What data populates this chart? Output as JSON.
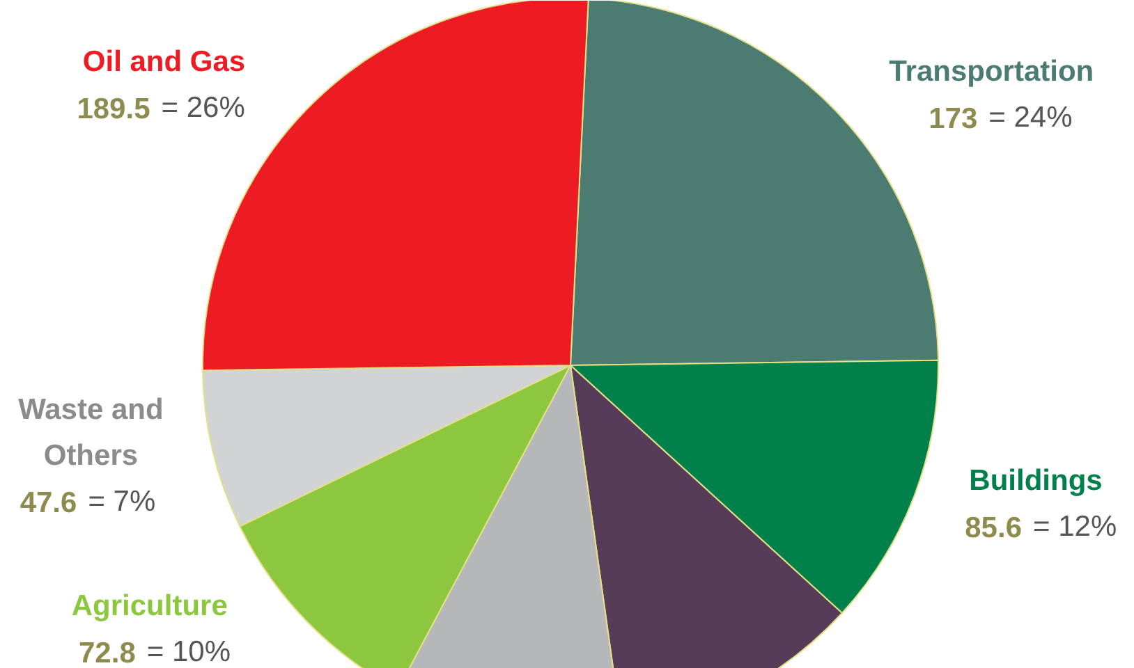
{
  "chart_data": {
    "type": "pie",
    "categories": [
      "Transportation",
      "Buildings",
      null,
      null,
      "Agriculture",
      "Waste and Others",
      "Oil and Gas"
    ],
    "values": [
      24,
      12,
      11,
      10,
      10,
      7,
      26
    ],
    "colors": [
      "#4b7b71",
      "#00804a",
      "#573c57",
      "#b6b7ba",
      "#8dc63f",
      "#d2d3d5",
      "#ed1c24"
    ],
    "value_labels": [
      "173 = 24%",
      "85.6 = 12%",
      null,
      null,
      "72.8 = 10%",
      "47.6 = 7%",
      "189.5 = 26%"
    ]
  }
}
